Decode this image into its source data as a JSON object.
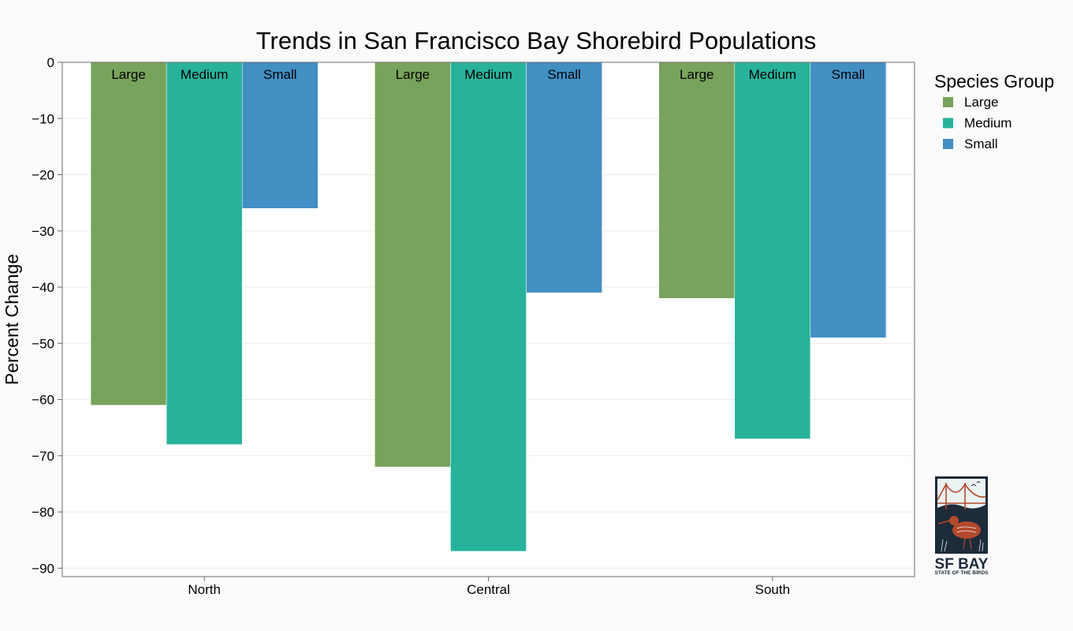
{
  "chart_data": {
    "type": "bar",
    "title": "Trends in San Francisco Bay Shorebird Populations",
    "xlabel": "",
    "ylabel": "Percent Change",
    "categories": [
      "North",
      "Central",
      "South"
    ],
    "series": [
      {
        "name": "Large",
        "color": "#78a35c",
        "values": [
          -61,
          -72,
          -42
        ]
      },
      {
        "name": "Medium",
        "color": "#27b39b",
        "values": [
          -68,
          -87,
          -67
        ]
      },
      {
        "name": "Small",
        "color": "#428fc4",
        "values": [
          -26,
          -41,
          -49
        ]
      }
    ],
    "ylim": [
      -91.5,
      0
    ],
    "yticks": [
      0,
      -10,
      -20,
      -30,
      -40,
      -50,
      -60,
      -70,
      -80,
      -90
    ],
    "ytick_labels": [
      "0",
      "−10",
      "−20",
      "−30",
      "−40",
      "−50",
      "−60",
      "−70",
      "−80",
      "−90"
    ],
    "grid": true,
    "legend": {
      "title": "Species Group",
      "placement": "right"
    }
  },
  "logo": {
    "line1": "SF BAY",
    "line2": "STATE OF THE BIRDS"
  }
}
